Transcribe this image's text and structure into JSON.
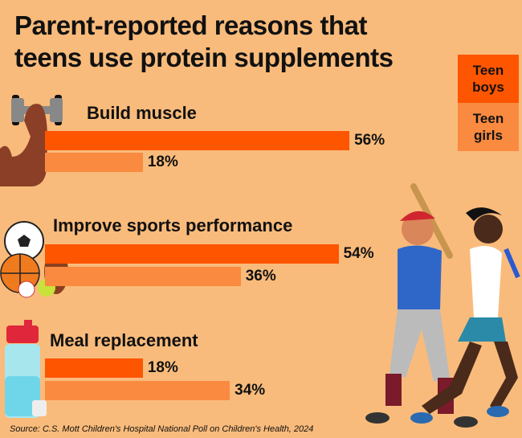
{
  "title_lines": [
    "Parent-reported reasons that",
    "teens use protein supplements"
  ],
  "colors": {
    "background": "#f9bb7b",
    "teen_boys": "#fe5500",
    "teen_girls": "#f98a40"
  },
  "legend": [
    {
      "label_lines": [
        "Teen",
        "boys"
      ]
    },
    {
      "label_lines": [
        "Teen",
        "girls"
      ]
    }
  ],
  "icons": [
    "flexed-arm-dumbbell-icon",
    "sports-balls-icon",
    "shaker-bottle-icon",
    "baseball-player-and-runner-illustration"
  ],
  "source": "Source: C.S. Mott Children's Hospital National Poll on Children's Health, 2024",
  "chart_data": {
    "type": "bar",
    "orientation": "horizontal",
    "categories": [
      "Build muscle",
      "Improve sports performance",
      "Meal replacement"
    ],
    "series": [
      {
        "name": "Teen boys",
        "values": [
          56,
          54,
          18
        ],
        "labels": [
          "56%",
          "54%",
          "18%"
        ]
      },
      {
        "name": "Teen girls",
        "values": [
          18,
          36,
          34
        ],
        "labels": [
          "18%",
          "36%",
          "34%"
        ]
      }
    ],
    "unit": "%",
    "legend_position": "top-right",
    "grid": false
  }
}
